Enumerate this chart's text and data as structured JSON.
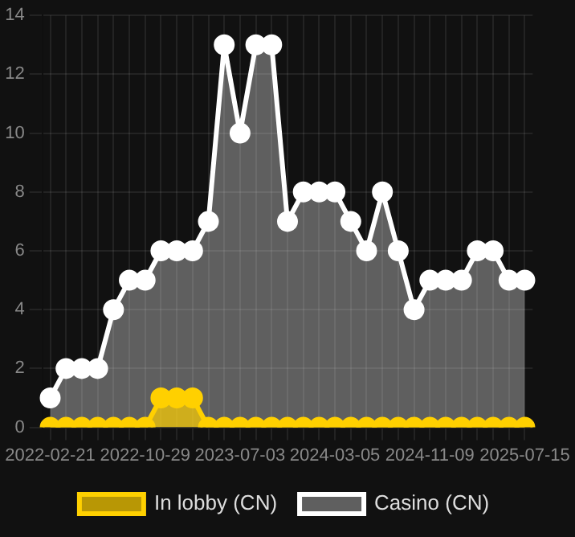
{
  "chart_data": {
    "type": "area",
    "categories": [
      "2022-02-21",
      null,
      null,
      null,
      null,
      null,
      "2022-10-29",
      null,
      null,
      null,
      null,
      null,
      "2023-07-03",
      null,
      null,
      null,
      null,
      null,
      "2024-03-05",
      null,
      null,
      null,
      null,
      null,
      "2024-11-09",
      null,
      null,
      null,
      null,
      null,
      "2025-07-15"
    ],
    "series": [
      {
        "name": "In lobby (CN)",
        "color": "#ffd000",
        "values": [
          0,
          0,
          0,
          0,
          0,
          0,
          0,
          1,
          1,
          1,
          0,
          0,
          0,
          0,
          0,
          0,
          0,
          0,
          0,
          0,
          0,
          0,
          0,
          0,
          0,
          0,
          0,
          0,
          0,
          0,
          0
        ]
      },
      {
        "name": "Casino (CN)",
        "color": "#ffffff",
        "values": [
          1,
          2,
          2,
          2,
          4,
          5,
          5,
          6,
          6,
          6,
          7,
          13,
          10,
          13,
          13,
          7,
          8,
          8,
          8,
          7,
          6,
          8,
          6,
          4,
          5,
          5,
          5,
          6,
          6,
          5,
          5
        ]
      }
    ],
    "ylim": [
      0,
      14
    ],
    "yticks": [
      0,
      2,
      4,
      6,
      8,
      10,
      12,
      14
    ],
    "grid": true,
    "legend": "bottom",
    "marker": "circle"
  }
}
